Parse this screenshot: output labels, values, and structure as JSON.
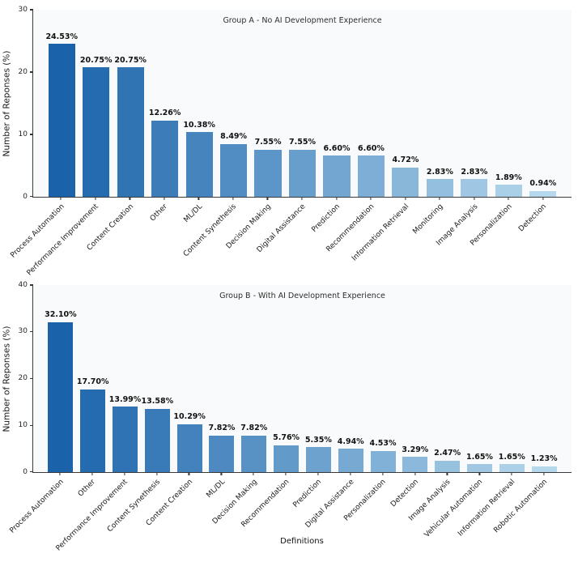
{
  "figure": {
    "xlabel": "Definitions",
    "background": "#ffffff"
  },
  "colors": {
    "bar_gradient_start": "#1a63ab",
    "bar_gradient_end": "#b5d8ec",
    "plot_background": "#f9fafb",
    "axis_line": "#3a3a3a",
    "tick_text": "#262626",
    "value_label_text": "#111111"
  },
  "chart_data": [
    {
      "type": "bar",
      "title": "Group A - No AI Development Experience",
      "xlabel": "",
      "ylabel": "Number of Reponses (%)",
      "ylim": [
        0,
        30
      ],
      "yticks": [
        0,
        10,
        20,
        30
      ],
      "grid": false,
      "legend": false,
      "categories": [
        "Process Automation",
        "Performance Improvement",
        "Content Creation",
        "Other",
        "ML/DL",
        "Content Synethesis",
        "Decision Making",
        "Digital Assistance",
        "Prediction",
        "Recommendation",
        "Information Retrieval",
        "Monitoring",
        "Image Analysis",
        "Personalization",
        "Detection"
      ],
      "values": [
        24.53,
        20.75,
        20.75,
        12.26,
        10.38,
        8.49,
        7.55,
        7.55,
        6.6,
        6.6,
        4.72,
        2.83,
        2.83,
        1.89,
        0.94
      ],
      "value_labels": [
        "24.53%",
        "20.75%",
        "20.75%",
        "12.26%",
        "10.38%",
        "8.49%",
        "7.55%",
        "7.55%",
        "6.60%",
        "6.60%",
        "4.72%",
        "2.83%",
        "2.83%",
        "1.89%",
        "0.94%"
      ]
    },
    {
      "type": "bar",
      "title": "Group B - With AI Development Experience",
      "xlabel": "Definitions",
      "ylabel": "Number of Reponses (%)",
      "ylim": [
        0,
        40
      ],
      "yticks": [
        0,
        10,
        20,
        30,
        40
      ],
      "grid": false,
      "legend": false,
      "categories": [
        "Process Automation",
        "Other",
        "Performance Improvement",
        "Content Synethesis",
        "Content Creation",
        "ML/DL",
        "Decision Making",
        "Recommendation",
        "Prediction",
        "Digital Assistance",
        "Personalization",
        "Detection",
        "Image Analysis",
        "Vehicular Automation",
        "Information Retrieval",
        "Robotic Automation"
      ],
      "values": [
        32.1,
        17.7,
        13.99,
        13.58,
        10.29,
        7.82,
        7.82,
        5.76,
        5.35,
        4.94,
        4.53,
        3.29,
        2.47,
        1.65,
        1.65,
        1.23
      ],
      "value_labels": [
        "32.10%",
        "17.70%",
        "13.99%",
        "13.58%",
        "10.29%",
        "7.82%",
        "7.82%",
        "5.76%",
        "5.35%",
        "4.94%",
        "4.53%",
        "3.29%",
        "2.47%",
        "1.65%",
        "1.65%",
        "1.23%"
      ]
    }
  ]
}
